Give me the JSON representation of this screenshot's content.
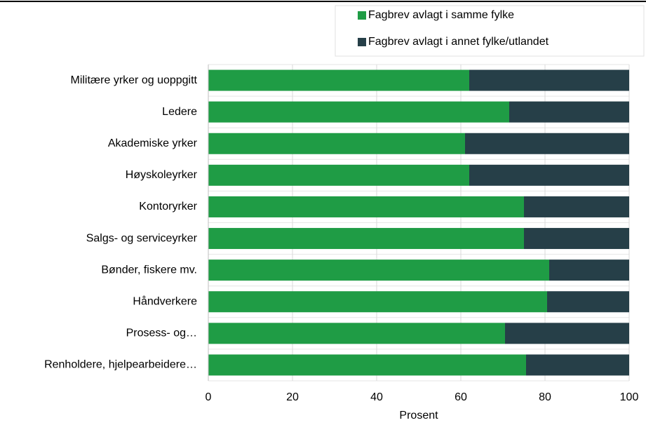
{
  "chart_data": {
    "type": "stacked_barh",
    "categories": [
      "Militære yrker og uoppgitt",
      "Ledere",
      "Akademiske yrker",
      "Høyskoleyrker",
      "Kontoryrker",
      "Salgs- og serviceyrker",
      "Bønder, fiskere mv.",
      "Håndverkere",
      "Prosess- og…",
      "Renholdere, hjelpearbeidere…"
    ],
    "series": [
      {
        "name": "Fagbrev avlagt i samme fylke",
        "color": "#1f9c45",
        "values": [
          62,
          71.5,
          61,
          62,
          75,
          75,
          81,
          80.5,
          70.5,
          75.5
        ]
      },
      {
        "name": "Fagbrev avlagt i annet fylke/utlandet",
        "color": "#263f48",
        "values": [
          38,
          28.5,
          39,
          38,
          25,
          25,
          19,
          19.5,
          29.5,
          24.5
        ]
      }
    ],
    "xlabel": "Prosent",
    "xlim": [
      0,
      100
    ],
    "xticks": [
      0,
      20,
      40,
      60,
      80,
      100
    ],
    "grid": true,
    "legend": "top-right"
  }
}
